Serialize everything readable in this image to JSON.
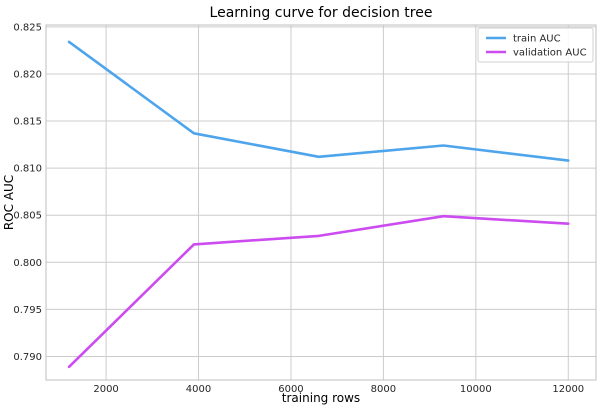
{
  "chart_data": {
    "type": "line",
    "title": "Learning curve for decision tree",
    "xlabel": "training rows",
    "ylabel": "ROC AUC",
    "x": [
      1200,
      3900,
      6600,
      9300,
      12000
    ],
    "xlim": [
      700,
      12600
    ],
    "ylim": [
      0.7875,
      0.8252
    ],
    "xticks": [
      2000,
      4000,
      6000,
      8000,
      10000,
      12000
    ],
    "yticks": [
      0.79,
      0.795,
      0.8,
      0.805,
      0.81,
      0.815,
      0.82,
      0.825
    ],
    "xtick_labels": [
      "2000",
      "4000",
      "6000",
      "8000",
      "10000",
      "12000"
    ],
    "ytick_labels": [
      "0.790",
      "0.795",
      "0.800",
      "0.805",
      "0.810",
      "0.815",
      "0.820",
      "0.825"
    ],
    "grid": true,
    "legend_position": "top-right",
    "series": [
      {
        "name": "train AUC",
        "color": "#4ea5ec",
        "values": [
          0.8234,
          0.8137,
          0.8112,
          0.8124,
          0.8108
        ]
      },
      {
        "name": "validation AUC",
        "color": "#cc4cf0",
        "values": [
          0.7889,
          0.8019,
          0.8028,
          0.8049,
          0.8041
        ]
      }
    ]
  }
}
